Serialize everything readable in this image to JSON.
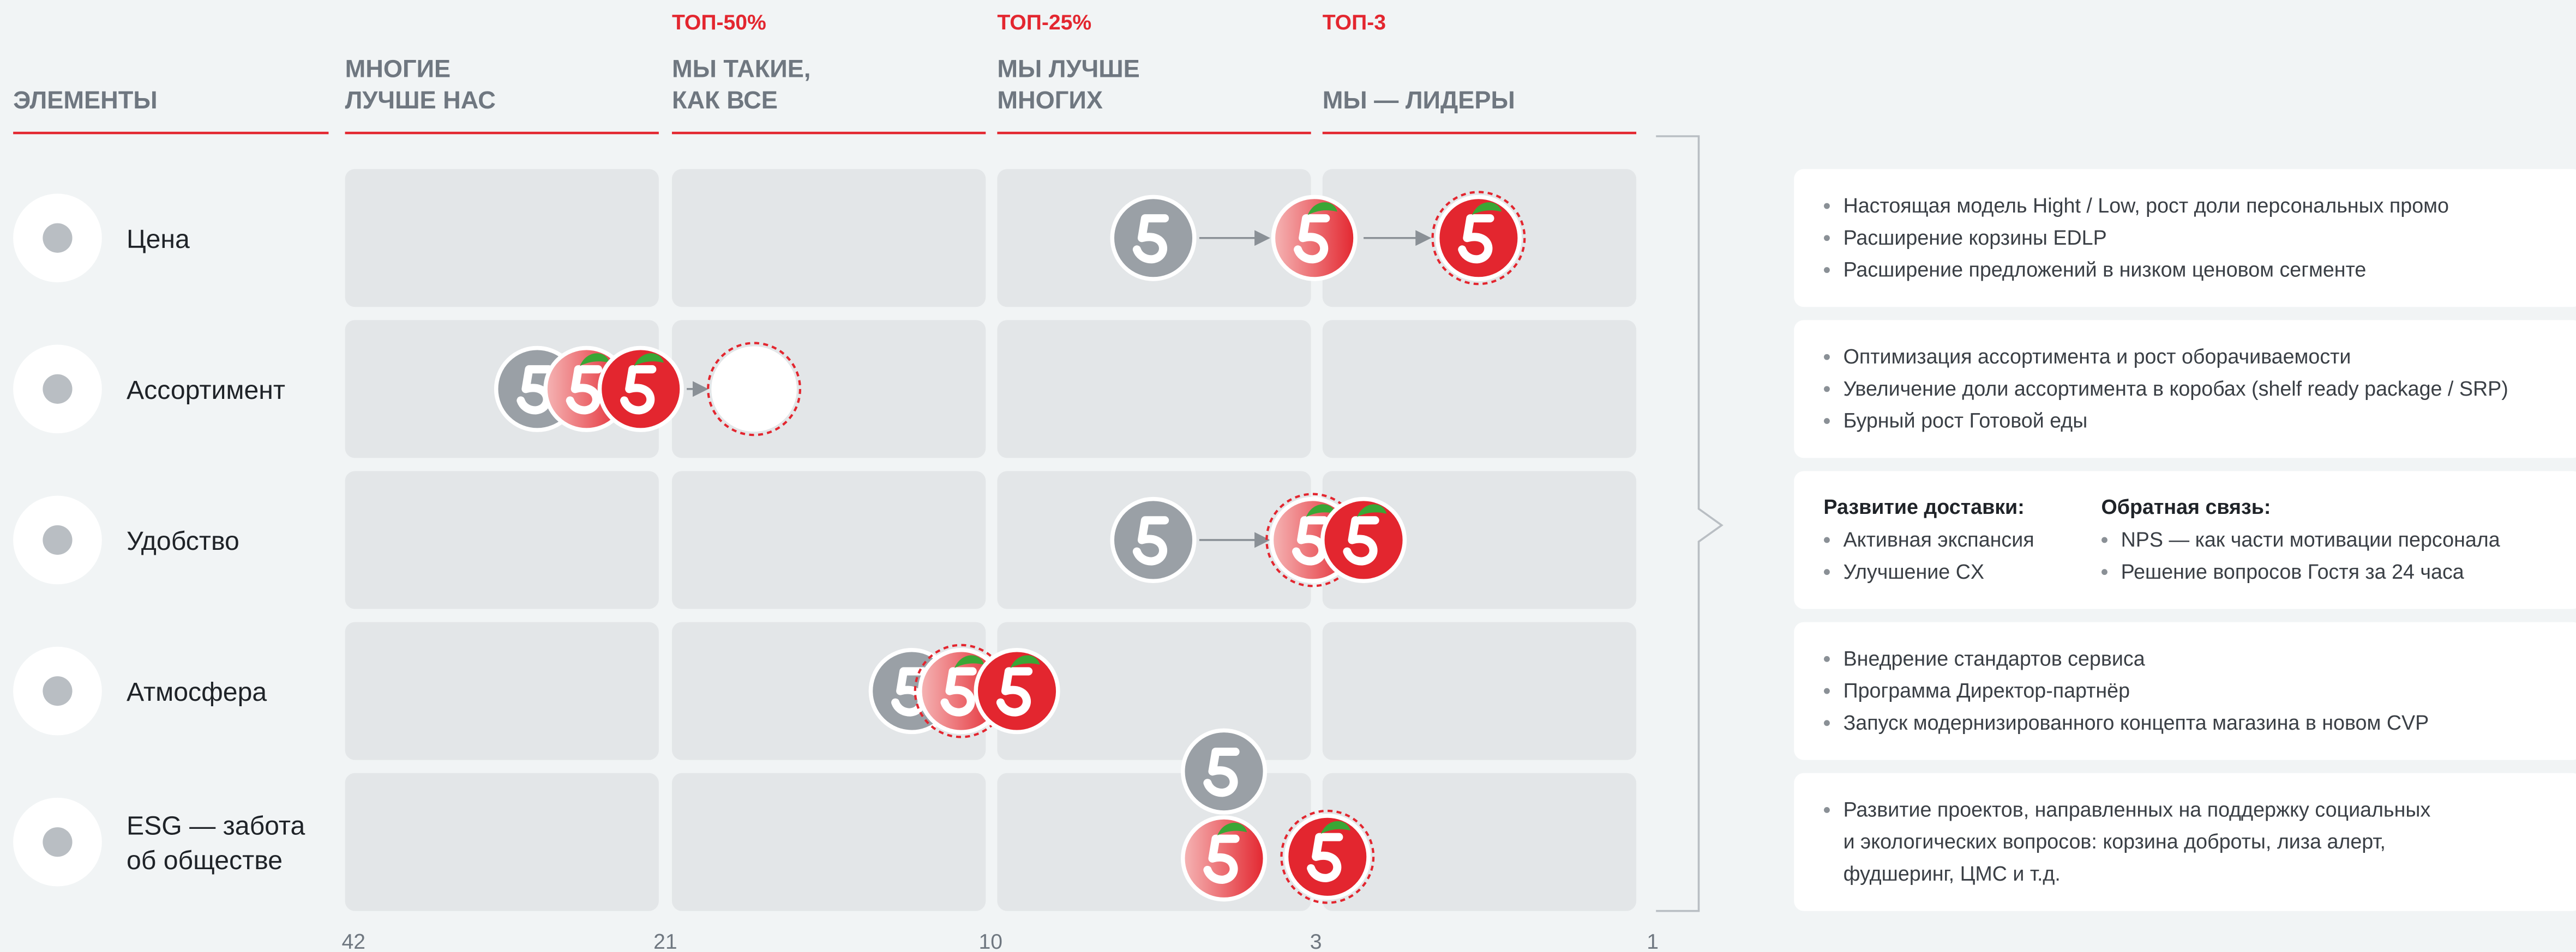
{
  "header": {
    "elements": "ЭЛЕМЕНТЫ"
  },
  "columns": [
    {
      "lines": [
        "МНОГИЕ",
        "ЛУЧШЕ НАС"
      ]
    },
    {
      "top": "ТОП-50%",
      "lines": [
        "МЫ ТАКИЕ,",
        "КАК ВСЕ"
      ]
    },
    {
      "top": "ТОП-25%",
      "lines": [
        "МЫ ЛУЧШЕ",
        "МНОГИХ"
      ]
    },
    {
      "top": "ТОП-3",
      "lines": [
        "МЫ — ЛИДЕРЫ"
      ]
    }
  ],
  "scale": [
    "42",
    "21",
    "10",
    "3",
    "1"
  ],
  "rows": [
    {
      "label": [
        "Цена"
      ],
      "notes": [
        [
          "Настоящая модель Hight / Low, рост доли персональных промо"
        ],
        [
          "Расширение корзины EDLP"
        ],
        [
          "Расширение предложений в низком ценовом сегменте"
        ]
      ]
    },
    {
      "label": [
        "Ассортимент"
      ],
      "notes": [
        [
          "Оптимизация ассортимента и рост оборачиваемости"
        ],
        [
          "Увеличение доли ассортимента в коробах (shelf ready package / SRP)"
        ],
        [
          "Бурный рост Готовой еды"
        ]
      ]
    },
    {
      "label": [
        "Удобство"
      ],
      "groups": [
        {
          "title": "Развитие доставки:",
          "items": [
            "Активная экспансия",
            "Улучшение CX"
          ]
        },
        {
          "title": "Обратная связь:",
          "items": [
            "NPS — как части мотивации персонала",
            "Решение вопросов Гостя за 24 часа"
          ]
        }
      ]
    },
    {
      "label": [
        "Атмосфера"
      ],
      "notes": [
        [
          "Внедрение стандартов сервиса"
        ],
        [
          "Программа Директор-партнёр"
        ],
        [
          "Запуск модернизированного концепта магазина в новом CVP"
        ]
      ]
    },
    {
      "label": [
        "ESG — забота",
        "об обществе"
      ],
      "notes": [
        [
          "Развитие проектов, направленных на поддержку социальных",
          "и экологических вопросов: корзина доброты, лиза алерт,",
          "фудшеринг, ЦМС и т.д."
        ]
      ]
    }
  ]
}
